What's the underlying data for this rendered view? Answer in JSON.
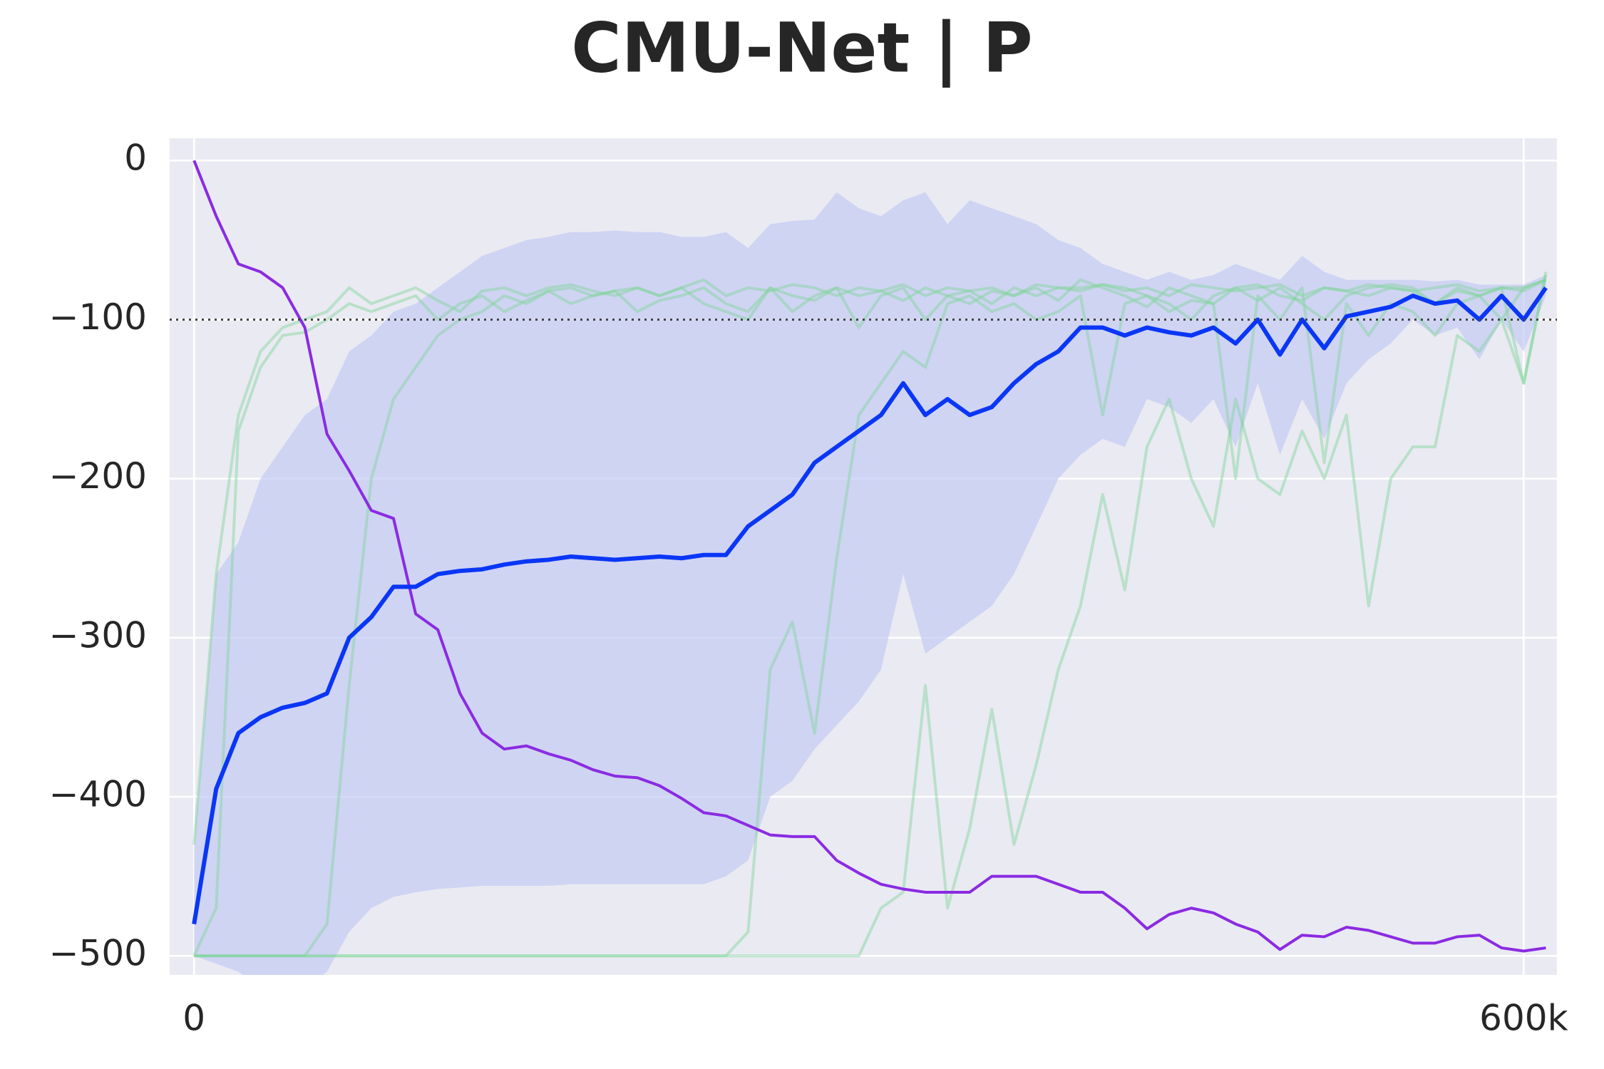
{
  "chart_data": {
    "type": "line",
    "title": "CMU-Net | P",
    "x": [
      0,
      10000,
      20000,
      30000,
      40000,
      50000,
      60000,
      70000,
      80000,
      90000,
      100000,
      110000,
      120000,
      130000,
      140000,
      150000,
      160000,
      170000,
      180000,
      190000,
      200000,
      210000,
      220000,
      230000,
      240000,
      250000,
      260000,
      270000,
      280000,
      290000,
      300000,
      310000,
      320000,
      330000,
      340000,
      350000,
      360000,
      370000,
      380000,
      390000,
      400000,
      410000,
      420000,
      430000,
      440000,
      450000,
      460000,
      470000,
      480000,
      490000,
      500000,
      510000,
      520000,
      530000,
      540000,
      550000,
      560000,
      570000,
      580000,
      590000,
      600000,
      610000
    ],
    "xlim": [
      -11000,
      615000
    ],
    "xticks": [
      0,
      {
        "value": 600000,
        "label": "600k"
      }
    ],
    "ylim": [
      -512,
      14
    ],
    "yticks": [
      0,
      {
        "value": -100,
        "label": "−100"
      },
      {
        "value": -200,
        "label": "−200"
      },
      {
        "value": -300,
        "label": "−300"
      },
      {
        "value": -400,
        "label": "−400"
      },
      {
        "value": -500,
        "label": "−500"
      }
    ],
    "grid": true,
    "reference_line": -100,
    "band": {
      "color": "#c3cbf3",
      "upper": [
        -430,
        -260,
        -240,
        -200,
        -180,
        -160,
        -150,
        -120,
        -110,
        -95,
        -90,
        -80,
        -70,
        -60,
        -55,
        -50,
        -48,
        -45,
        -45,
        -44,
        -45,
        -45,
        -48,
        -48,
        -45,
        -55,
        -40,
        -38,
        -37,
        -20,
        -30,
        -35,
        -25,
        -20,
        -40,
        -25,
        -30,
        -35,
        -40,
        -50,
        -55,
        -65,
        -70,
        -75,
        -70,
        -75,
        -72,
        -65,
        -70,
        -75,
        -60,
        -70,
        -75,
        -75,
        -75,
        -75,
        -76,
        -75,
        -78,
        -78,
        -78,
        -72
      ],
      "lower": [
        -500,
        -505,
        -510,
        -520,
        -520,
        -520,
        -510,
        -485,
        -470,
        -463,
        -460,
        -458,
        -457,
        -456,
        -456,
        -456,
        -456,
        -455,
        -455,
        -455,
        -455,
        -455,
        -455,
        -455,
        -450,
        -440,
        -400,
        -390,
        -370,
        -355,
        -340,
        -320,
        -260,
        -310,
        -300,
        -290,
        -280,
        -260,
        -230,
        -200,
        -185,
        -175,
        -180,
        -150,
        -155,
        -165,
        -150,
        -180,
        -140,
        -185,
        -150,
        -175,
        -140,
        -125,
        -115,
        -100,
        -110,
        -105,
        -125,
        -100,
        -120,
        -85
      ]
    },
    "series": [
      {
        "color": "#7fd49a",
        "values": [
          -430,
          -260,
          -160,
          -120,
          -105,
          -100,
          -95,
          -80,
          -90,
          -85,
          -80,
          -88,
          -95,
          -82,
          -80,
          -85,
          -80,
          -78,
          -82,
          -85,
          -80,
          -85,
          -80,
          -75,
          -85,
          -80,
          -82,
          -78,
          -80,
          -85,
          -80,
          -82,
          -78,
          -85,
          -80,
          -82,
          -80,
          -85,
          -78,
          -80,
          -80,
          -78,
          -82,
          -80,
          -85,
          -78,
          -80,
          -82,
          -80,
          -78,
          -85,
          -80,
          -82,
          -78,
          -80,
          -82,
          -80,
          -78,
          -82,
          -80,
          -80,
          -75
        ]
      },
      {
        "color": "#7fd49a",
        "values": [
          -500,
          -470,
          -170,
          -130,
          -110,
          -108,
          -100,
          -90,
          -95,
          -90,
          -85,
          -100,
          -90,
          -85,
          -95,
          -88,
          -82,
          -90,
          -85,
          -82,
          -95,
          -88,
          -85,
          -80,
          -90,
          -95,
          -80,
          -85,
          -88,
          -80,
          -85,
          -82,
          -88,
          -80,
          -85,
          -90,
          -82,
          -85,
          -80,
          -88,
          -75,
          -80,
          -85,
          -92,
          -80,
          -85,
          -90,
          -80,
          -78,
          -85,
          -88,
          -80,
          -82,
          -85,
          -80,
          -82,
          -90,
          -82,
          -85,
          -80,
          -82,
          -75
        ]
      },
      {
        "color": "#7fd49a",
        "values": [
          -500,
          -500,
          -500,
          -500,
          -500,
          -500,
          -480,
          -330,
          -200,
          -150,
          -130,
          -110,
          -100,
          -95,
          -85,
          -90,
          -82,
          -80,
          -85,
          -82,
          -80,
          -85,
          -80,
          -90,
          -95,
          -100,
          -80,
          -95,
          -85,
          -80,
          -105,
          -85,
          -80,
          -100,
          -85,
          -82,
          -90,
          -80,
          -85,
          -80,
          -82,
          -78,
          -80,
          -85,
          -90,
          -100,
          -85,
          -80,
          -88,
          -80,
          -90,
          -100,
          -85,
          -80,
          -78,
          -80,
          -90,
          -80,
          -85,
          -80,
          -140,
          -72
        ]
      },
      {
        "color": "#7fd49a",
        "values": [
          -500,
          -500,
          -500,
          -500,
          -500,
          -500,
          -500,
          -500,
          -500,
          -500,
          -500,
          -500,
          -500,
          -500,
          -500,
          -500,
          -500,
          -500,
          -500,
          -500,
          -500,
          -500,
          -500,
          -500,
          -500,
          -485,
          -320,
          -290,
          -360,
          -250,
          -160,
          -140,
          -120,
          -130,
          -90,
          -85,
          -95,
          -90,
          -100,
          -95,
          -85,
          -160,
          -90,
          -85,
          -95,
          -88,
          -90,
          -200,
          -85,
          -100,
          -80,
          -190,
          -90,
          -110,
          -90,
          -95,
          -110,
          -90,
          -85,
          -100,
          -80,
          -75
        ]
      },
      {
        "color": "#7fd49a",
        "values": [
          -500,
          -500,
          -500,
          -500,
          -500,
          -500,
          -500,
          -500,
          -500,
          -500,
          -500,
          -500,
          -500,
          -500,
          -500,
          -500,
          -500,
          -500,
          -500,
          -500,
          -500,
          -500,
          -500,
          -500,
          -500,
          -500,
          -500,
          -500,
          -500,
          -500,
          -500,
          -470,
          -460,
          -330,
          -470,
          -420,
          -345,
          -430,
          -380,
          -320,
          -280,
          -210,
          -270,
          -180,
          -150,
          -200,
          -230,
          -150,
          -200,
          -210,
          -170,
          -200,
          -160,
          -280,
          -200,
          -180,
          -180,
          -110,
          -120,
          -100,
          -140,
          -70
        ]
      },
      {
        "color": "#8a2be2",
        "values": [
          0,
          -35,
          -65,
          -70,
          -80,
          -105,
          -172,
          -195,
          -220,
          -225,
          -285,
          -295,
          -335,
          -360,
          -370,
          -368,
          -373,
          -377,
          -383,
          -387,
          -388,
          -393,
          -401,
          -410,
          -412,
          -418,
          -424,
          -425,
          -425,
          -440,
          -448,
          -455,
          -458,
          -460,
          -460,
          -460,
          -450,
          -450,
          -450,
          -455,
          -460,
          -460,
          -470,
          -483,
          -474,
          -470,
          -473,
          -480,
          -485,
          -496,
          -487,
          -488,
          -482,
          -484,
          -488,
          -492,
          -492,
          -488,
          -487,
          -495,
          -497,
          -495
        ]
      },
      {
        "color": "#0a36f5",
        "values": [
          -480,
          -395,
          -360,
          -350,
          -344,
          -341,
          -335,
          -300,
          -287,
          -268,
          -268,
          -260,
          -258,
          -257,
          -254,
          -252,
          -251,
          -249,
          -250,
          -251,
          -250,
          -249,
          -250,
          -248,
          -248,
          -230,
          -220,
          -210,
          -190,
          -180,
          -170,
          -160,
          -140,
          -160,
          -150,
          -160,
          -155,
          -140,
          -128,
          -120,
          -105,
          -105,
          -110,
          -105,
          -108,
          -110,
          -105,
          -115,
          -100,
          -122,
          -100,
          -118,
          -98,
          -95,
          -92,
          -85,
          -90,
          -88,
          -100,
          -85,
          -100,
          -80
        ]
      }
    ]
  }
}
